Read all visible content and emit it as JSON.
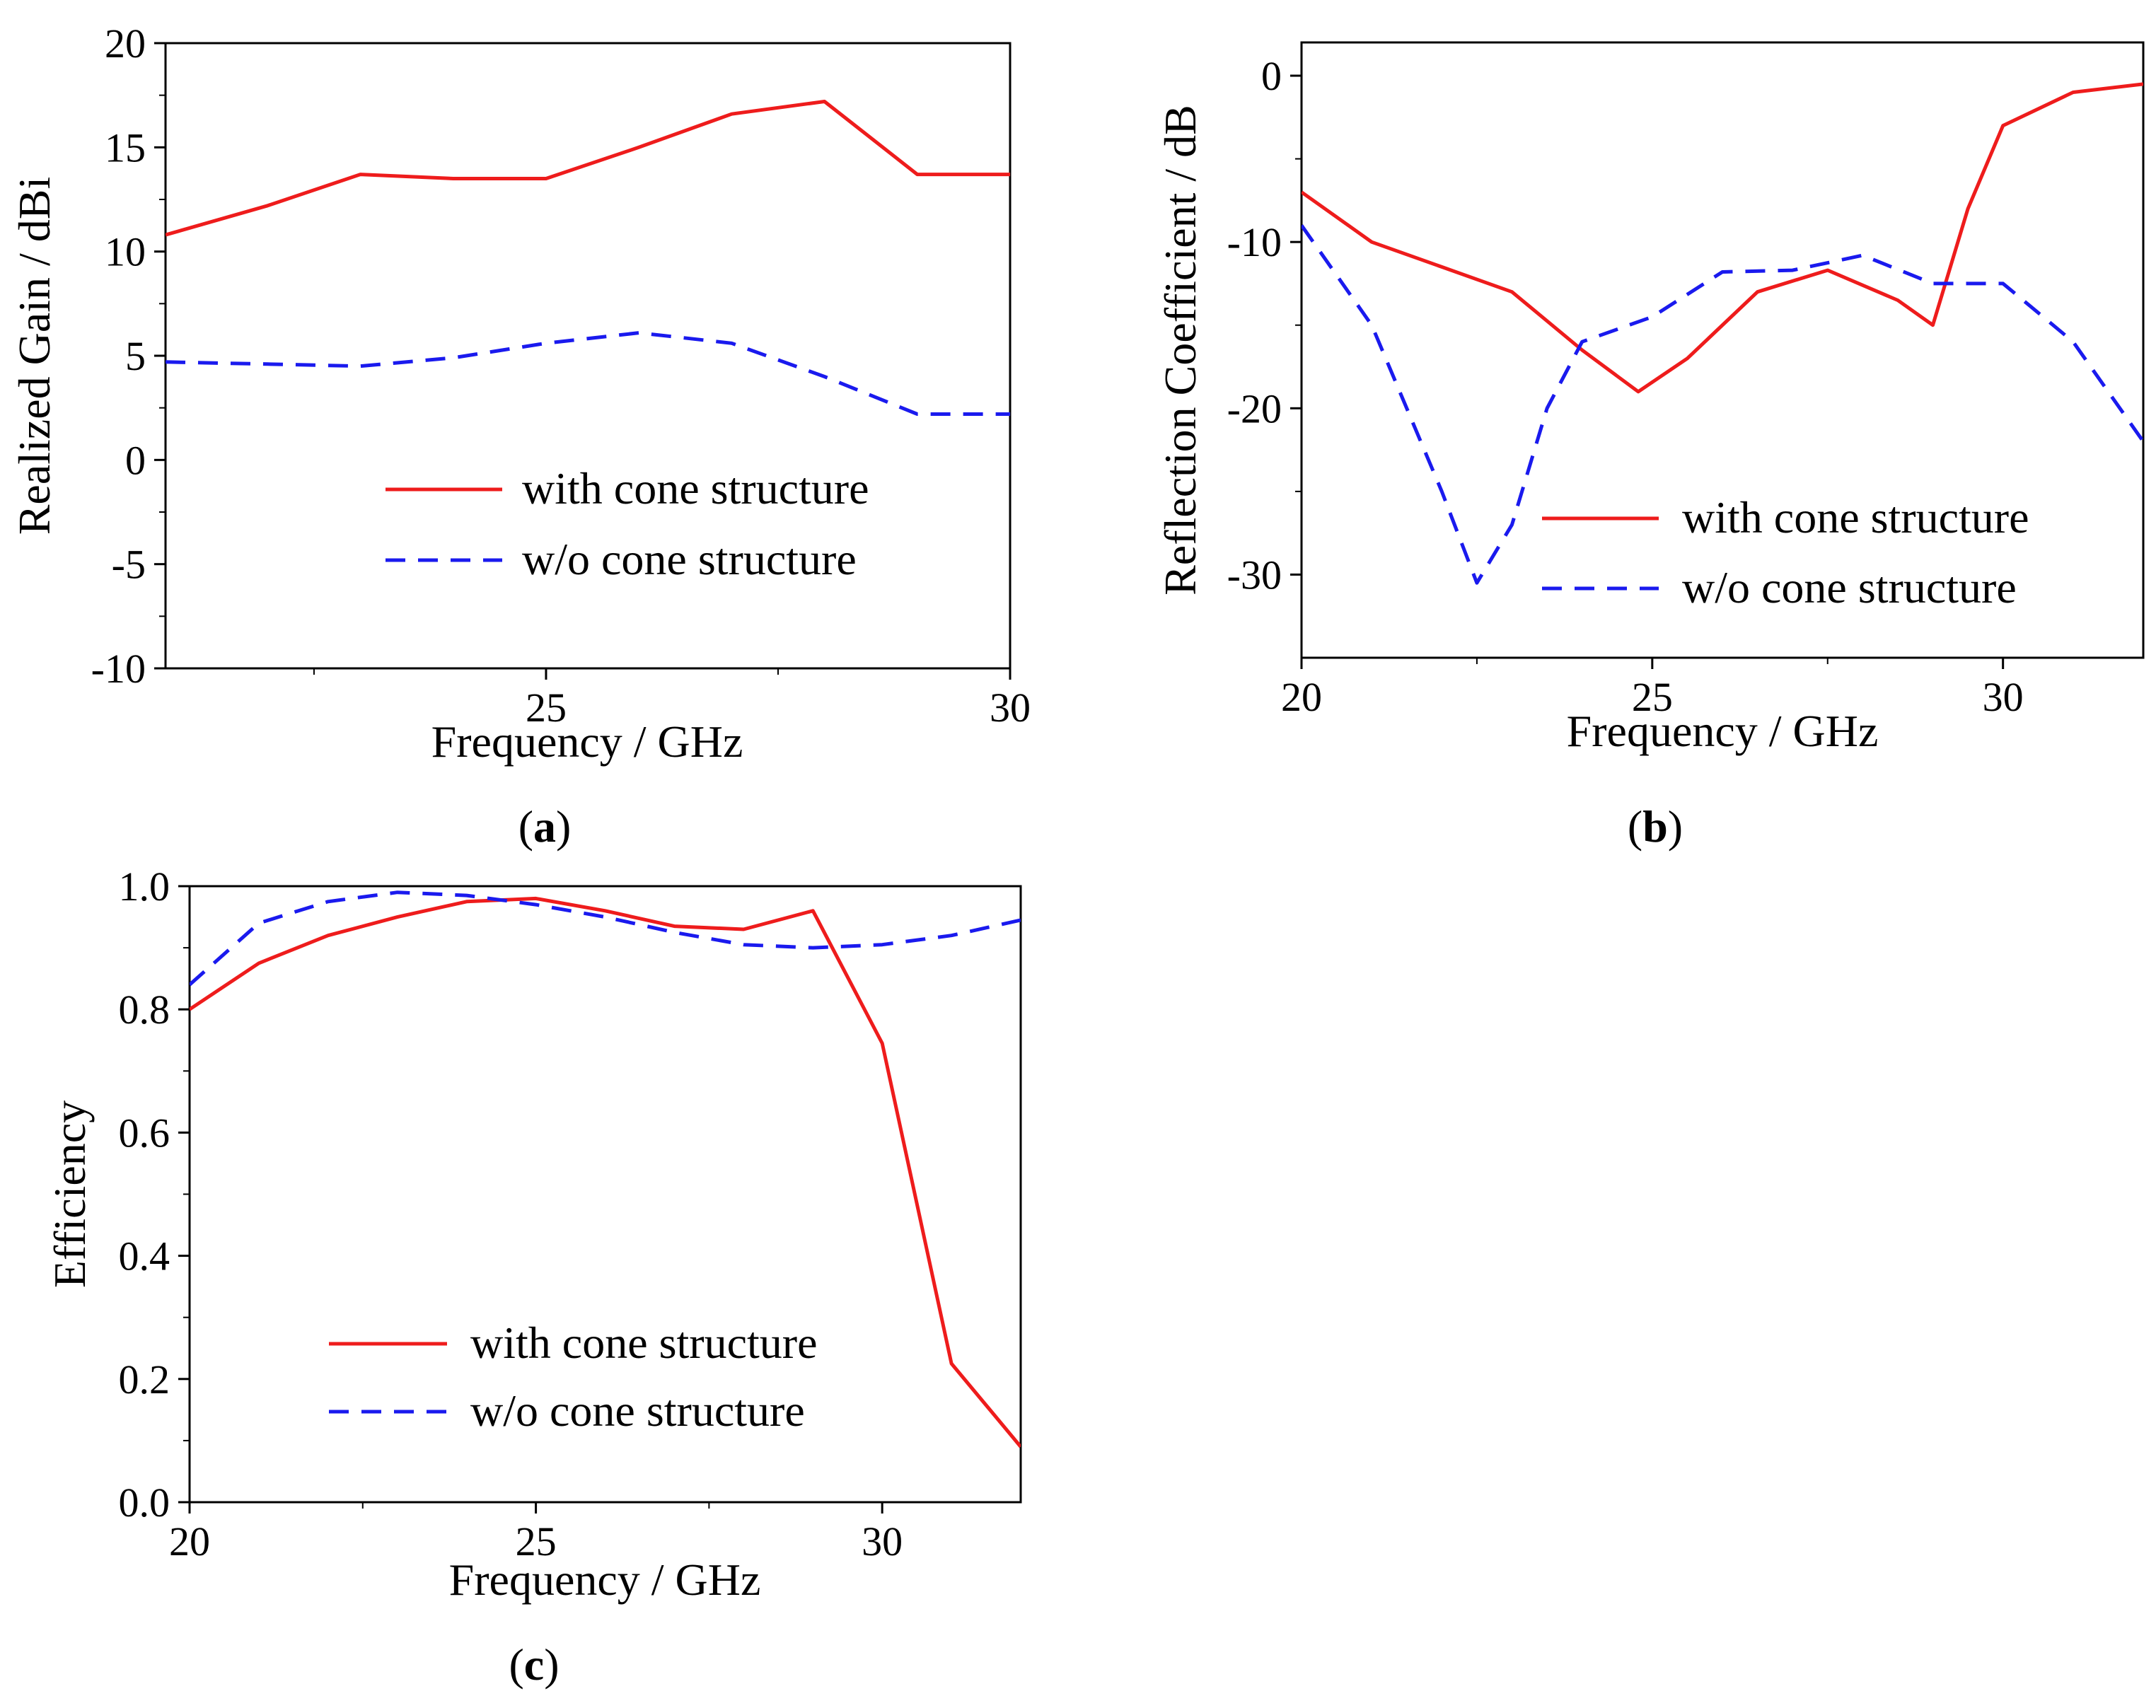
{
  "chart_data": [
    {
      "id": "a",
      "type": "line",
      "panel_label": "a",
      "xlabel": "Frequency / GHz",
      "ylabel": "Realized Gain / dBi",
      "xlim": [
        20.9,
        30
      ],
      "ylim": [
        -10,
        20
      ],
      "xticks": [
        25,
        30
      ],
      "yticks": [
        20,
        15,
        10,
        5,
        0,
        -5,
        -10
      ],
      "series": [
        {
          "name": "with cone structure",
          "color": "#ee1c1c",
          "dash": "solid",
          "x": [
            20.9,
            22,
            23,
            24,
            25,
            26,
            27,
            28,
            29,
            30
          ],
          "y": [
            10.8,
            12.2,
            13.7,
            13.5,
            13.5,
            15.0,
            16.6,
            17.2,
            13.7,
            13.7
          ]
        },
        {
          "name": "w/o cone structure",
          "color": "#1a1aee",
          "dash": "dashed",
          "x": [
            20.9,
            22,
            23,
            24,
            25,
            26,
            27,
            28,
            29,
            30
          ],
          "y": [
            4.7,
            4.6,
            4.5,
            4.9,
            5.6,
            6.1,
            5.6,
            4.0,
            2.2,
            2.2
          ]
        }
      ]
    },
    {
      "id": "b",
      "type": "line",
      "panel_label": "b",
      "xlabel": "Frequency / GHz",
      "ylabel": "Reflection Coefficient / dB",
      "xlim": [
        20,
        32
      ],
      "ylim": [
        -35,
        2
      ],
      "xticks": [
        20,
        25,
        30
      ],
      "yticks": [
        0,
        -10,
        -20,
        -30
      ],
      "series": [
        {
          "name": "with cone structure",
          "color": "#ee1c1c",
          "dash": "solid",
          "x": [
            20,
            21,
            22,
            23,
            24,
            24.8,
            25.5,
            26.5,
            27.5,
            28.5,
            29,
            29.5,
            30,
            31,
            32
          ],
          "y": [
            -7,
            -10,
            -11.5,
            -13,
            -16.5,
            -19,
            -17,
            -13,
            -11.7,
            -13.5,
            -15,
            -8,
            -3,
            -1,
            -0.5
          ]
        },
        {
          "name": "w/o cone structure",
          "color": "#1a1aee",
          "dash": "dashed",
          "x": [
            20,
            21,
            22,
            22.5,
            23,
            23.5,
            24,
            25,
            26,
            27,
            28,
            29,
            30,
            31,
            32
          ],
          "y": [
            -9,
            -15,
            -25,
            -30.5,
            -27,
            -20,
            -16,
            -14.5,
            -11.8,
            -11.7,
            -10.8,
            -12.5,
            -12.5,
            -16,
            -22
          ]
        }
      ]
    },
    {
      "id": "c",
      "type": "line",
      "panel_label": "c",
      "xlabel": "Frequency / GHz",
      "ylabel": "Efficiency",
      "xlim": [
        20,
        32
      ],
      "ylim": [
        0.0,
        1.0
      ],
      "xticks": [
        20,
        25,
        30
      ],
      "yticks": [
        "1.0",
        "0.8",
        "0.6",
        "0.4",
        "0.2",
        "0.0"
      ],
      "series": [
        {
          "name": "with cone structure",
          "color": "#ee1c1c",
          "dash": "solid",
          "x": [
            20,
            21,
            22,
            23,
            24,
            25,
            26,
            27,
            28,
            29,
            30,
            31,
            32
          ],
          "y": [
            0.8,
            0.875,
            0.92,
            0.95,
            0.975,
            0.98,
            0.96,
            0.935,
            0.93,
            0.96,
            0.745,
            0.225,
            0.09
          ]
        },
        {
          "name": "w/o cone structure",
          "color": "#1a1aee",
          "dash": "dashed",
          "x": [
            20,
            21,
            22,
            23,
            24,
            25,
            26,
            27,
            28,
            29,
            30,
            31,
            32
          ],
          "y": [
            0.84,
            0.94,
            0.975,
            0.99,
            0.985,
            0.97,
            0.95,
            0.925,
            0.905,
            0.9,
            0.905,
            0.92,
            0.945
          ]
        }
      ]
    }
  ]
}
